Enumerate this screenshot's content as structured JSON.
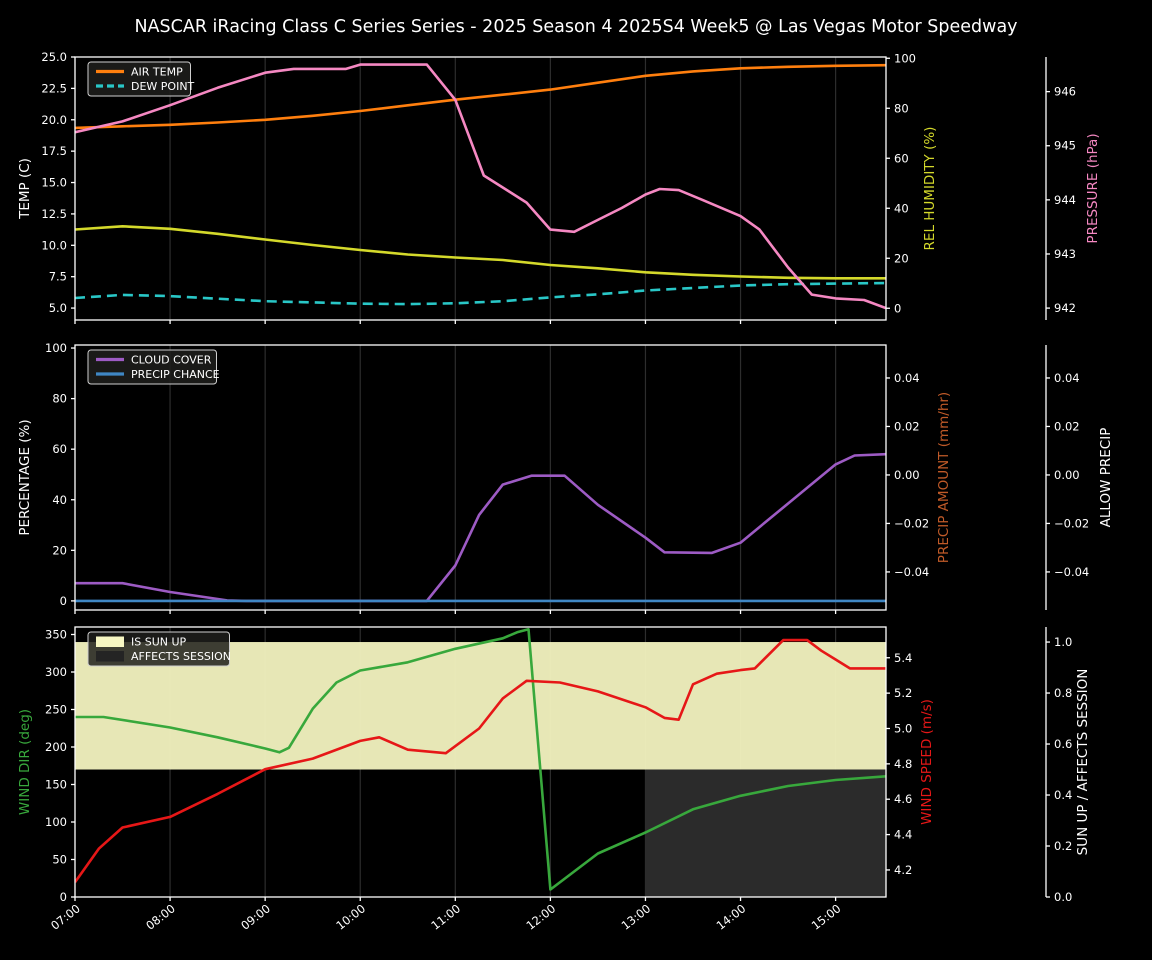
{
  "title": "NASCAR iRacing Class C Series Series - 2025 Season 4 2025S4 Week5 @ Las Vegas Motor Speedway",
  "figure": {
    "background": "#000000",
    "text_color": "#ffffff",
    "grid_color": "#2d2d2d",
    "legend_bg": "rgba(30,30,28,0.85)",
    "legend_border": "#cfcfcf"
  },
  "x_axis": {
    "range": [
      7.0,
      15.53
    ],
    "tick_values": [
      7,
      8,
      9,
      10,
      11,
      12,
      13,
      14,
      15
    ],
    "tick_labels": [
      "07:00",
      "08:00",
      "09:00",
      "10:00",
      "11:00",
      "12:00",
      "13:00",
      "14:00",
      "15:00"
    ]
  },
  "chart_data": [
    {
      "id": "temperature-humidity-pressure",
      "type": "line",
      "left_axis": {
        "label": "TEMP (C)",
        "label_color": "#ffffff",
        "range": [
          4.05,
          25.0
        ],
        "tick_values": [
          5,
          7.5,
          10,
          12.5,
          15,
          17.5,
          20,
          22.5,
          25
        ],
        "tick_labels": [
          "5.0",
          "7.5",
          "10.0",
          "12.5",
          "15.0",
          "17.5",
          "20.0",
          "22.5",
          "25.0"
        ]
      },
      "right_axes": [
        {
          "label": "REL HUMIDITY (%)",
          "label_color": "#d4d92b",
          "range": [
            -4.7,
            100.5
          ],
          "tick_values": [
            0,
            20,
            40,
            60,
            80,
            100
          ],
          "tick_labels": [
            "0",
            "20",
            "40",
            "60",
            "80",
            "100"
          ]
        },
        {
          "label": "PRESSURE (hPa)",
          "label_color": "#f588c2",
          "range": [
            941.78,
            946.64
          ],
          "tick_values": [
            942,
            943,
            944,
            945,
            946
          ],
          "tick_labels": [
            "942",
            "943",
            "944",
            "945",
            "946"
          ]
        }
      ],
      "legend": [
        {
          "label": "AIR TEMP",
          "color": "#ff7f0e",
          "kind": "line"
        },
        {
          "label": "DEW POINT",
          "color": "#29c7c7",
          "kind": "dashed"
        }
      ],
      "series": [
        {
          "name": "AIR TEMP",
          "axis": "left",
          "color": "#ff7f0e",
          "x": [
            7,
            7.5,
            8,
            8.5,
            9,
            9.5,
            10,
            10.5,
            11,
            11.5,
            12,
            12.5,
            13,
            13.5,
            14,
            14.5,
            15,
            15.53
          ],
          "y": [
            19.35,
            19.48,
            19.6,
            19.78,
            20.0,
            20.32,
            20.7,
            21.15,
            21.6,
            22.0,
            22.4,
            22.95,
            23.5,
            23.85,
            24.1,
            24.22,
            24.3,
            24.35
          ]
        },
        {
          "name": "DEW POINT",
          "axis": "left",
          "color": "#29c7c7",
          "dash": "10 6",
          "x": [
            7,
            7.5,
            8,
            8.5,
            9,
            9.5,
            10,
            10.5,
            11,
            11.5,
            12,
            12.5,
            13,
            13.5,
            14,
            14.5,
            15,
            15.53
          ],
          "y": [
            5.8,
            6.05,
            5.95,
            5.75,
            5.55,
            5.45,
            5.35,
            5.32,
            5.38,
            5.55,
            5.85,
            6.1,
            6.4,
            6.6,
            6.8,
            6.9,
            6.95,
            7.0
          ]
        },
        {
          "name": "REL HUMIDITY",
          "axis": "right0",
          "color": "#d4d92b",
          "x": [
            7,
            7.5,
            8,
            8.5,
            9,
            9.5,
            10,
            10.5,
            11,
            11.5,
            12,
            12.5,
            13,
            13.5,
            14,
            14.5,
            15,
            15.53
          ],
          "y": [
            31.5,
            32.8,
            31.8,
            29.8,
            27.5,
            25.3,
            23.3,
            21.5,
            20.3,
            19.3,
            17.3,
            16.0,
            14.4,
            13.4,
            12.7,
            12.2,
            12.0,
            12.0
          ]
        },
        {
          "name": "PRESSURE",
          "axis": "right1",
          "color": "#f588c2",
          "x": [
            7,
            7.5,
            8,
            8.5,
            9,
            9.3,
            9.85,
            10,
            10.7,
            11,
            11.3,
            11.75,
            12,
            12.25,
            12.5,
            12.75,
            13,
            13.15,
            13.35,
            13.6,
            14,
            14.2,
            14.5,
            14.75,
            15,
            15.3,
            15.53
          ],
          "y": [
            945.25,
            945.45,
            945.75,
            946.07,
            946.35,
            946.42,
            946.42,
            946.5,
            946.5,
            945.85,
            944.45,
            943.95,
            943.45,
            943.41,
            943.63,
            943.85,
            944.1,
            944.2,
            944.18,
            944.0,
            943.7,
            943.45,
            942.75,
            942.25,
            942.18,
            942.15,
            942.0
          ]
        }
      ]
    },
    {
      "id": "cloud-precip",
      "type": "line",
      "left_axis": {
        "label": "PERCENTAGE (%)",
        "label_color": "#ffffff",
        "range": [
          -3.6,
          101.2
        ],
        "tick_values": [
          0,
          20,
          40,
          60,
          80,
          100
        ],
        "tick_labels": [
          "0",
          "20",
          "40",
          "60",
          "80",
          "100"
        ]
      },
      "right_axes": [
        {
          "label": "PRECIP AMOUNT (mm/hr)",
          "label_color": "#c05a28",
          "range": [
            -0.0557,
            0.0536
          ],
          "tick_values": [
            0.04,
            0.02,
            0,
            -0.02,
            -0.04
          ],
          "tick_labels": [
            "0.04",
            "0.02",
            "0.00",
            "−0.02",
            "−0.04"
          ]
        },
        {
          "label": "ALLOW PRECIP",
          "label_color": "#ffffff",
          "range": [
            -0.0557,
            0.0536
          ],
          "tick_values": [
            0.04,
            0.02,
            0,
            -0.02,
            -0.04
          ],
          "tick_labels": [
            "0.04",
            "0.02",
            "0.00",
            "−0.02",
            "−0.04"
          ]
        }
      ],
      "legend": [
        {
          "label": "CLOUD COVER",
          "color": "#9d5bc4",
          "kind": "line"
        },
        {
          "label": "PRECIP CHANCE",
          "color": "#3f87c4",
          "kind": "line"
        }
      ],
      "series": [
        {
          "name": "CLOUD COVER",
          "axis": "left",
          "color": "#9d5bc4",
          "x": [
            7,
            7.5,
            8,
            8.6,
            8.8,
            10.7,
            11,
            11.25,
            11.5,
            11.8,
            12.15,
            12.5,
            13,
            13.2,
            13.7,
            14,
            14.5,
            15,
            15.2,
            15.53
          ],
          "y": [
            7,
            7,
            3.5,
            0.2,
            0,
            0,
            14,
            34,
            46,
            49.5,
            49.5,
            38,
            25,
            19.2,
            19,
            23,
            38.5,
            54,
            57.5,
            58
          ]
        },
        {
          "name": "PRECIP CHANCE",
          "axis": "left",
          "color": "#3f87c4",
          "x": [
            7,
            15.53
          ],
          "y": [
            0,
            0
          ]
        }
      ]
    },
    {
      "id": "wind-sun",
      "type": "line",
      "left_axis": {
        "label": "WIND DIR (deg)",
        "label_color": "#38a83c",
        "range": [
          0,
          360
        ],
        "tick_values": [
          0,
          50,
          100,
          150,
          200,
          250,
          300,
          350
        ],
        "tick_labels": [
          "0",
          "50",
          "100",
          "150",
          "200",
          "250",
          "300",
          "350"
        ]
      },
      "right_axes": [
        {
          "label": "WIND SPEED (m/s)",
          "label_color": "#e61717",
          "range": [
            4.047,
            5.574
          ],
          "tick_values": [
            4.2,
            4.4,
            4.6,
            4.8,
            5.0,
            5.2,
            5.4
          ],
          "tick_labels": [
            "4.2",
            "4.4",
            "4.6",
            "4.8",
            "5.0",
            "5.2",
            "5.4"
          ]
        },
        {
          "label": "SUN UP / AFFECTS SESSION",
          "label_color": "#ffffff",
          "range": [
            0,
            1.059
          ],
          "tick_values": [
            0,
            0.2,
            0.4,
            0.6,
            0.8,
            1.0
          ],
          "tick_labels": [
            "0.0",
            "0.2",
            "0.4",
            "0.6",
            "0.8",
            "1.0"
          ]
        }
      ],
      "legend": [
        {
          "label": "IS SUN UP",
          "color": "#f6f6c3",
          "kind": "patch"
        },
        {
          "label": "AFFECTS SESSION",
          "color": "#242424",
          "kind": "patch"
        }
      ],
      "fills": [
        {
          "name": "is-sun-up-band",
          "axis": "right1",
          "color": "#f3f3c0",
          "opacity": 0.95,
          "x": [
            7,
            15.53
          ],
          "y0": 0.5,
          "y1": 1.0
        },
        {
          "name": "affects-session-band",
          "axis": "right1",
          "color": "#2b2b2b",
          "opacity": 1,
          "x": [
            13,
            15.53
          ],
          "y0": 0.0,
          "y1": 0.5
        }
      ],
      "series": [
        {
          "name": "WIND DIR",
          "axis": "left",
          "color": "#38a83c",
          "x": [
            7,
            7.3,
            8,
            8.5,
            9,
            9.15,
            9.25,
            9.5,
            9.75,
            10,
            10.5,
            11,
            11.5,
            11.65,
            11.77,
            12.0,
            12.5,
            13,
            13.5,
            14,
            14.5,
            15,
            15.53
          ],
          "y": [
            240,
            240,
            226,
            213,
            198,
            193,
            199,
            251,
            286,
            302,
            313,
            331,
            345,
            353,
            357,
            10,
            58,
            86,
            117,
            135,
            148,
            156,
            161
          ]
        },
        {
          "name": "WIND SPEED",
          "axis": "right0",
          "color": "#e61717",
          "x": [
            7,
            7.25,
            7.5,
            8,
            8.5,
            9,
            9.5,
            10,
            10.2,
            10.5,
            10.9,
            11.25,
            11.5,
            11.75,
            12.1,
            12.5,
            13,
            13.2,
            13.35,
            13.5,
            13.75,
            14,
            14.15,
            14.45,
            14.7,
            14.85,
            15,
            15.15,
            15.53
          ],
          "y": [
            4.13,
            4.32,
            4.44,
            4.5,
            4.63,
            4.77,
            4.83,
            4.93,
            4.95,
            4.88,
            4.86,
            5.0,
            5.17,
            5.27,
            5.26,
            5.21,
            5.12,
            5.06,
            5.05,
            5.25,
            5.31,
            5.33,
            5.34,
            5.5,
            5.5,
            5.44,
            5.39,
            5.34,
            5.34
          ]
        }
      ]
    }
  ]
}
